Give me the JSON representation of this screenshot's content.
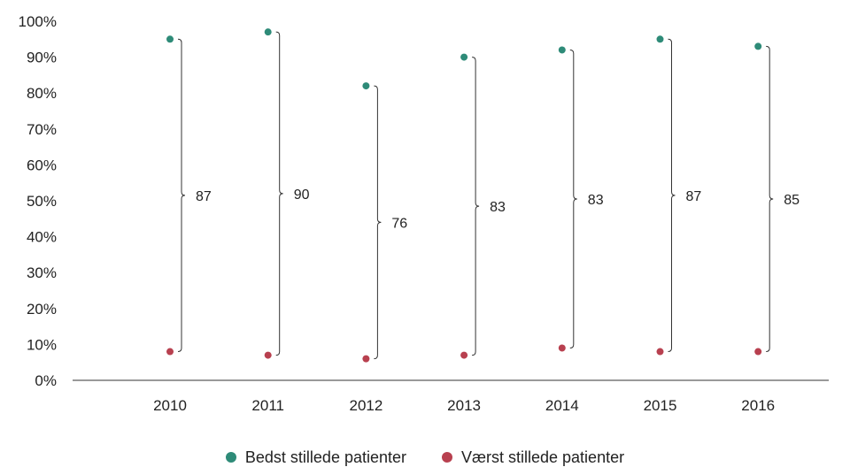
{
  "chart_data": {
    "type": "scatter",
    "categories": [
      "2010",
      "2011",
      "2012",
      "2013",
      "2014",
      "2015",
      "2016"
    ],
    "series": [
      {
        "name": "Bedst stillede patienter",
        "color": "#2e8b78",
        "values": [
          95,
          97,
          82,
          90,
          92,
          95,
          93
        ]
      },
      {
        "name": "Værst stillede patienter",
        "color": "#b8404f",
        "values": [
          8,
          7,
          6,
          7,
          9,
          8,
          8
        ]
      }
    ],
    "gap_labels": [
      "87",
      "90",
      "76",
      "83",
      "83",
      "87",
      "85"
    ],
    "yticks": [
      "0%",
      "10%",
      "20%",
      "30%",
      "40%",
      "50%",
      "60%",
      "70%",
      "80%",
      "90%",
      "100%"
    ],
    "ylim": [
      0,
      100
    ],
    "legend": "bottom-center",
    "grid": false
  }
}
